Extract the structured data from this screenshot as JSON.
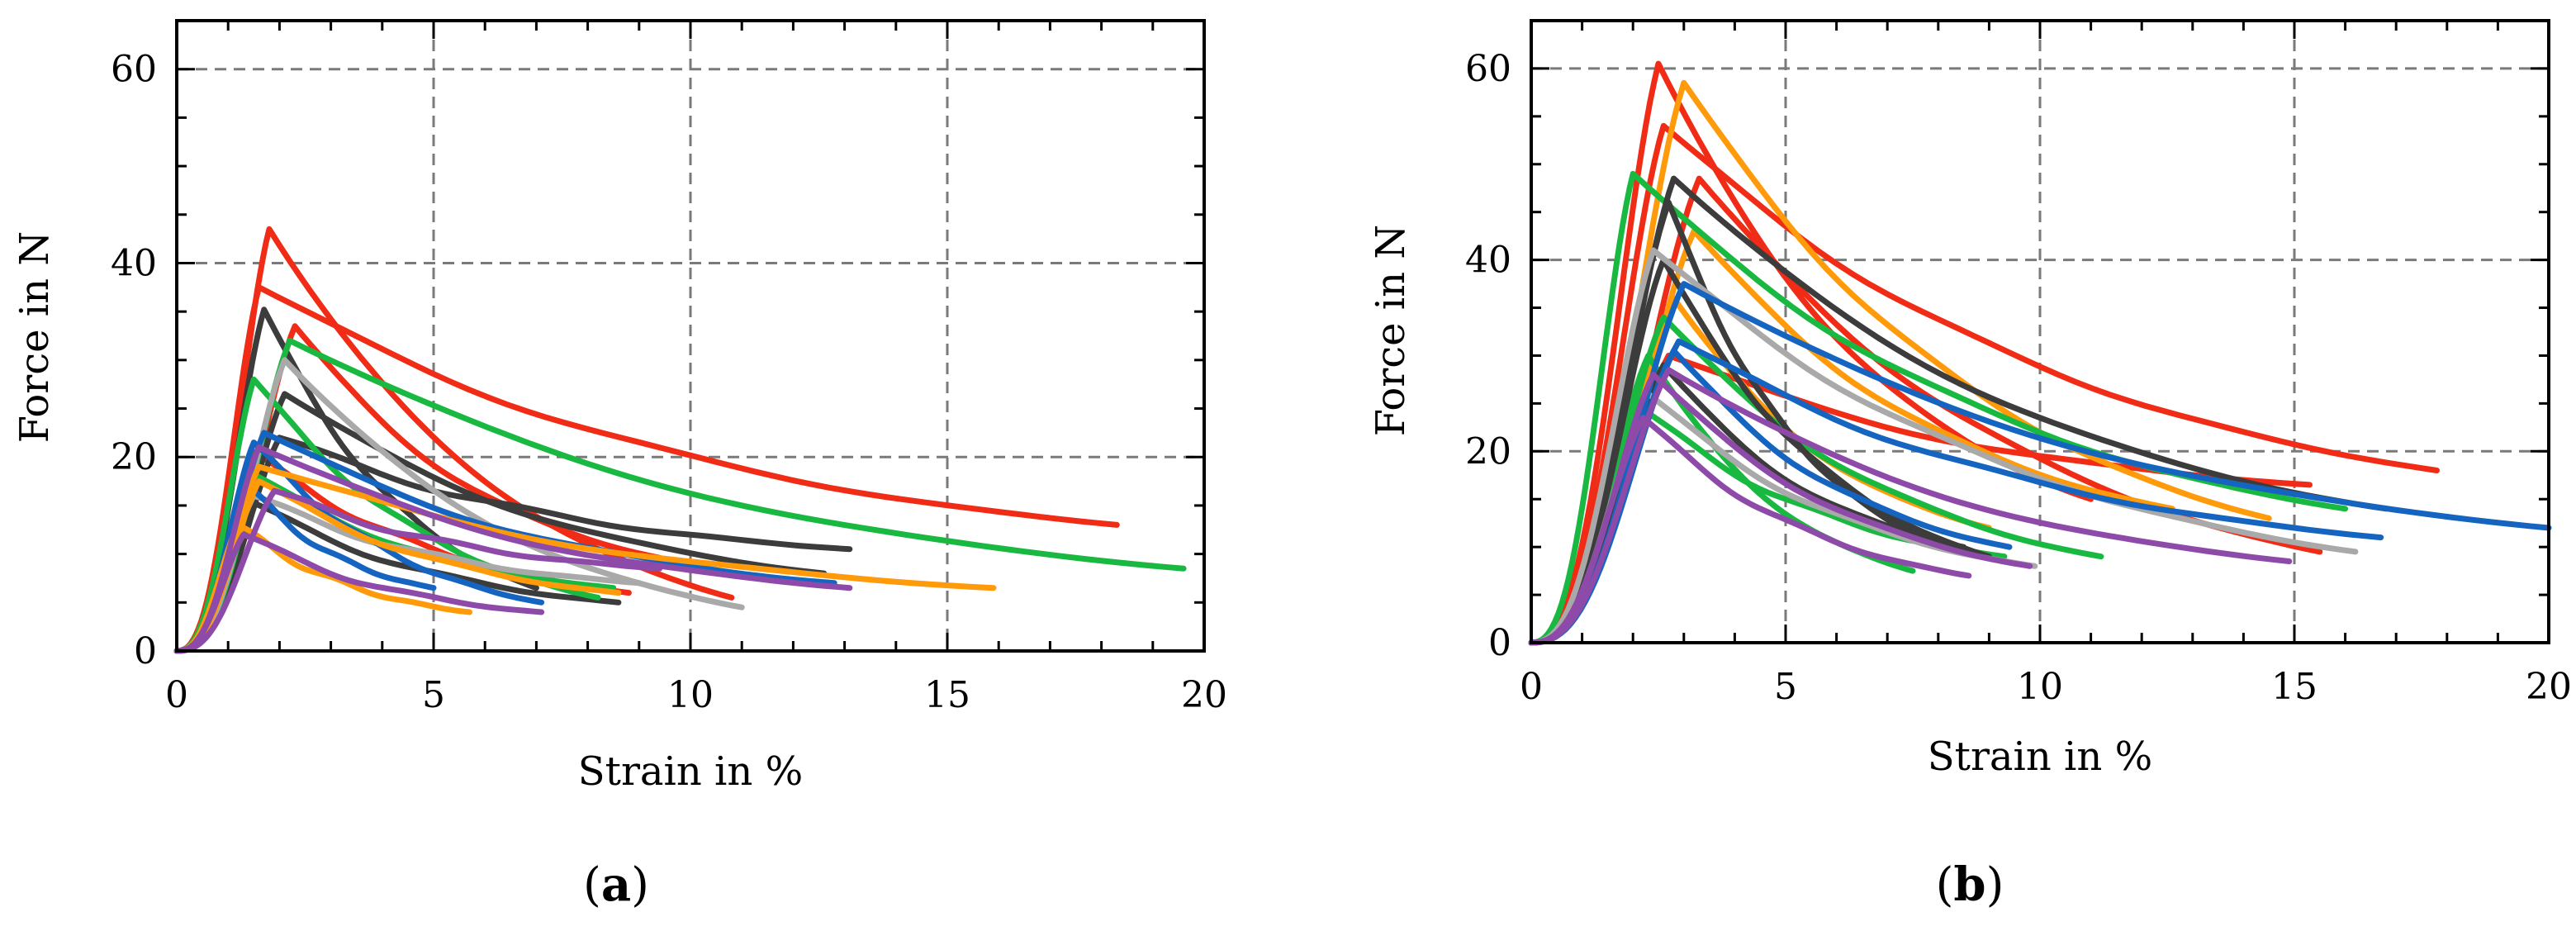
{
  "chart_data": [
    {
      "type": "line",
      "panel_label": "a",
      "xlabel": "Strain in %",
      "ylabel": "Force in N",
      "xlim": [
        0,
        20
      ],
      "ylim": [
        0,
        65
      ],
      "xticks": [
        "0",
        "5",
        "10",
        "15",
        "20"
      ],
      "yticks": [
        "0",
        "20",
        "40",
        "60"
      ],
      "grid": true,
      "series": [
        {
          "name": "red-1",
          "color": "#f02b16",
          "peak_strain": 1.8,
          "peak_force": 43.5,
          "end_strain": 10.8,
          "end_force": 5.5
        },
        {
          "name": "red-2",
          "color": "#f02b16",
          "peak_strain": 1.6,
          "peak_force": 37.5,
          "end_strain": 18.3,
          "end_force": 13.0
        },
        {
          "name": "red-3",
          "color": "#f02b16",
          "peak_strain": 2.3,
          "peak_force": 33.5,
          "end_strain": 9.4,
          "end_force": 9.6
        },
        {
          "name": "red-4",
          "color": "#f02b16",
          "peak_strain": 1.5,
          "peak_force": 20.5,
          "end_strain": 8.8,
          "end_force": 6.0
        },
        {
          "name": "dark-1",
          "color": "#3c3c3c",
          "peak_strain": 1.7,
          "peak_force": 35.2,
          "end_strain": 7.0,
          "end_force": 6.5
        },
        {
          "name": "dark-2",
          "color": "#3c3c3c",
          "peak_strain": 2.1,
          "peak_force": 26.5,
          "end_strain": 12.6,
          "end_force": 8.0
        },
        {
          "name": "dark-3",
          "color": "#3c3c3c",
          "peak_strain": 2.0,
          "peak_force": 22.0,
          "end_strain": 13.1,
          "end_force": 10.5
        },
        {
          "name": "dark-4",
          "color": "#3c3c3c",
          "peak_strain": 1.4,
          "peak_force": 15.5,
          "end_strain": 8.6,
          "end_force": 5.0
        },
        {
          "name": "green-1",
          "color": "#19b841",
          "peak_strain": 2.2,
          "peak_force": 32.0,
          "end_strain": 19.6,
          "end_force": 8.5
        },
        {
          "name": "green-2",
          "color": "#19b841",
          "peak_strain": 1.5,
          "peak_force": 28.0,
          "end_strain": 8.2,
          "end_force": 5.5
        },
        {
          "name": "green-3",
          "color": "#19b841",
          "peak_strain": 1.4,
          "peak_force": 18.5,
          "end_strain": 8.5,
          "end_force": 6.5
        },
        {
          "name": "gray-1",
          "color": "#a9a9a9",
          "peak_strain": 2.1,
          "peak_force": 30.0,
          "end_strain": 11.0,
          "end_force": 4.5
        },
        {
          "name": "gray-2",
          "color": "#a9a9a9",
          "peak_strain": 1.5,
          "peak_force": 16.0,
          "end_strain": 9.0,
          "end_force": 7.0
        },
        {
          "name": "blue-1",
          "color": "#1565c0",
          "peak_strain": 1.7,
          "peak_force": 22.5,
          "end_strain": 12.8,
          "end_force": 7.0
        },
        {
          "name": "blue-2",
          "color": "#1565c0",
          "peak_strain": 1.5,
          "peak_force": 21.5,
          "end_strain": 7.1,
          "end_force": 5.0
        },
        {
          "name": "blue-3",
          "color": "#1565c0",
          "peak_strain": 1.4,
          "peak_force": 17.0,
          "end_strain": 5.0,
          "end_force": 6.5
        },
        {
          "name": "orange-1",
          "color": "#ff9a0a",
          "peak_strain": 1.6,
          "peak_force": 19.0,
          "end_strain": 15.9,
          "end_force": 6.5
        },
        {
          "name": "orange-2",
          "color": "#ff9a0a",
          "peak_strain": 1.2,
          "peak_force": 13.0,
          "end_strain": 5.7,
          "end_force": 4.0
        },
        {
          "name": "orange-3",
          "color": "#ff9a0a",
          "peak_strain": 1.6,
          "peak_force": 17.5,
          "end_strain": 8.6,
          "end_force": 6.0
        },
        {
          "name": "purple-1",
          "color": "#8e4aa8",
          "peak_strain": 1.6,
          "peak_force": 21.0,
          "end_strain": 13.1,
          "end_force": 6.5
        },
        {
          "name": "purple-2",
          "color": "#8e4aa8",
          "peak_strain": 1.9,
          "peak_force": 16.5,
          "end_strain": 9.4,
          "end_force": 8.5
        },
        {
          "name": "purple-3",
          "color": "#8e4aa8",
          "peak_strain": 1.3,
          "peak_force": 12.0,
          "end_strain": 7.1,
          "end_force": 4.0
        }
      ]
    },
    {
      "type": "line",
      "panel_label": "b",
      "xlabel": "Strain in %",
      "ylabel": "Force in N",
      "xlim": [
        0,
        20
      ],
      "ylim": [
        0,
        65
      ],
      "xticks": [
        "0",
        "5",
        "10",
        "15",
        "20"
      ],
      "yticks": [
        "0",
        "20",
        "40",
        "60"
      ],
      "grid": true,
      "series": [
        {
          "name": "red-1",
          "color": "#f02b16",
          "peak_strain": 2.5,
          "peak_force": 60.5,
          "end_strain": 11.0,
          "end_force": 15.0
        },
        {
          "name": "red-2",
          "color": "#f02b16",
          "peak_strain": 2.6,
          "peak_force": 54.0,
          "end_strain": 17.8,
          "end_force": 18.0
        },
        {
          "name": "red-3",
          "color": "#f02b16",
          "peak_strain": 3.3,
          "peak_force": 48.5,
          "end_strain": 15.5,
          "end_force": 9.5
        },
        {
          "name": "red-4",
          "color": "#f02b16",
          "peak_strain": 2.7,
          "peak_force": 30.0,
          "end_strain": 15.3,
          "end_force": 16.5
        },
        {
          "name": "orange-1",
          "color": "#ff9a0a",
          "peak_strain": 3.0,
          "peak_force": 58.5,
          "end_strain": 14.5,
          "end_force": 13.0
        },
        {
          "name": "orange-2",
          "color": "#ff9a0a",
          "peak_strain": 3.2,
          "peak_force": 43.0,
          "end_strain": 12.6,
          "end_force": 14.0
        },
        {
          "name": "orange-3",
          "color": "#ff9a0a",
          "peak_strain": 2.8,
          "peak_force": 36.0,
          "end_strain": 9.0,
          "end_force": 12.0
        },
        {
          "name": "green-1",
          "color": "#19b841",
          "peak_strain": 2.0,
          "peak_force": 49.0,
          "end_strain": 16.0,
          "end_force": 14.0
        },
        {
          "name": "green-2",
          "color": "#19b841",
          "peak_strain": 2.6,
          "peak_force": 34.0,
          "end_strain": 11.2,
          "end_force": 9.0
        },
        {
          "name": "green-3",
          "color": "#19b841",
          "peak_strain": 2.3,
          "peak_force": 30.0,
          "end_strain": 7.5,
          "end_force": 7.5
        },
        {
          "name": "green-4",
          "color": "#19b841",
          "peak_strain": 2.3,
          "peak_force": 24.0,
          "end_strain": 9.3,
          "end_force": 9.0
        },
        {
          "name": "dark-1",
          "color": "#3c3c3c",
          "peak_strain": 2.8,
          "peak_force": 48.5,
          "end_strain": 16.8,
          "end_force": 14.0
        },
        {
          "name": "dark-2",
          "color": "#3c3c3c",
          "peak_strain": 2.7,
          "peak_force": 46.0,
          "end_strain": 7.7,
          "end_force": 11.0
        },
        {
          "name": "dark-3",
          "color": "#3c3c3c",
          "peak_strain": 2.6,
          "peak_force": 40.0,
          "end_strain": 9.0,
          "end_force": 9.0
        },
        {
          "name": "dark-4",
          "color": "#3c3c3c",
          "peak_strain": 2.6,
          "peak_force": 29.0,
          "end_strain": 8.5,
          "end_force": 10.0
        },
        {
          "name": "gray-1",
          "color": "#a9a9a9",
          "peak_strain": 2.4,
          "peak_force": 41.0,
          "end_strain": 16.2,
          "end_force": 9.5
        },
        {
          "name": "gray-2",
          "color": "#a9a9a9",
          "peak_strain": 2.3,
          "peak_force": 26.0,
          "end_strain": 9.9,
          "end_force": 8.0
        },
        {
          "name": "blue-1",
          "color": "#1565c0",
          "peak_strain": 3.0,
          "peak_force": 37.5,
          "end_strain": 20.0,
          "end_force": 12.0
        },
        {
          "name": "blue-2",
          "color": "#1565c0",
          "peak_strain": 2.9,
          "peak_force": 31.5,
          "end_strain": 16.7,
          "end_force": 11.0
        },
        {
          "name": "blue-3",
          "color": "#1565c0",
          "peak_strain": 2.8,
          "peak_force": 30.5,
          "end_strain": 9.4,
          "end_force": 10.0
        },
        {
          "name": "purple-1",
          "color": "#8e4aa8",
          "peak_strain": 2.7,
          "peak_force": 28.5,
          "end_strain": 14.9,
          "end_force": 8.5
        },
        {
          "name": "purple-2",
          "color": "#8e4aa8",
          "peak_strain": 2.2,
          "peak_force": 23.5,
          "end_strain": 8.6,
          "end_force": 7.0
        },
        {
          "name": "purple-3",
          "color": "#8e4aa8",
          "peak_strain": 2.4,
          "peak_force": 28.0,
          "end_strain": 9.8,
          "end_force": 8.0
        }
      ]
    }
  ]
}
